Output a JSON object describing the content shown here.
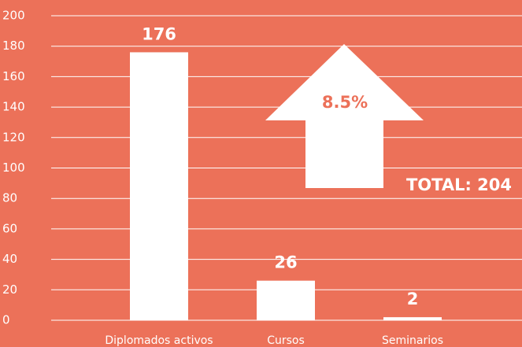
{
  "chart_data": {
    "type": "bar",
    "categories": [
      "Diplomados activos",
      "Cursos",
      "Seminarios"
    ],
    "values": [
      176,
      26,
      2
    ],
    "color": "#ffffff",
    "ylim": [
      0,
      200
    ],
    "yticks": [
      0,
      20,
      40,
      60,
      80,
      100,
      120,
      140,
      160,
      180,
      200
    ],
    "grid": true,
    "annotations": [
      "8.5%",
      "TOTAL: 204"
    ]
  }
}
